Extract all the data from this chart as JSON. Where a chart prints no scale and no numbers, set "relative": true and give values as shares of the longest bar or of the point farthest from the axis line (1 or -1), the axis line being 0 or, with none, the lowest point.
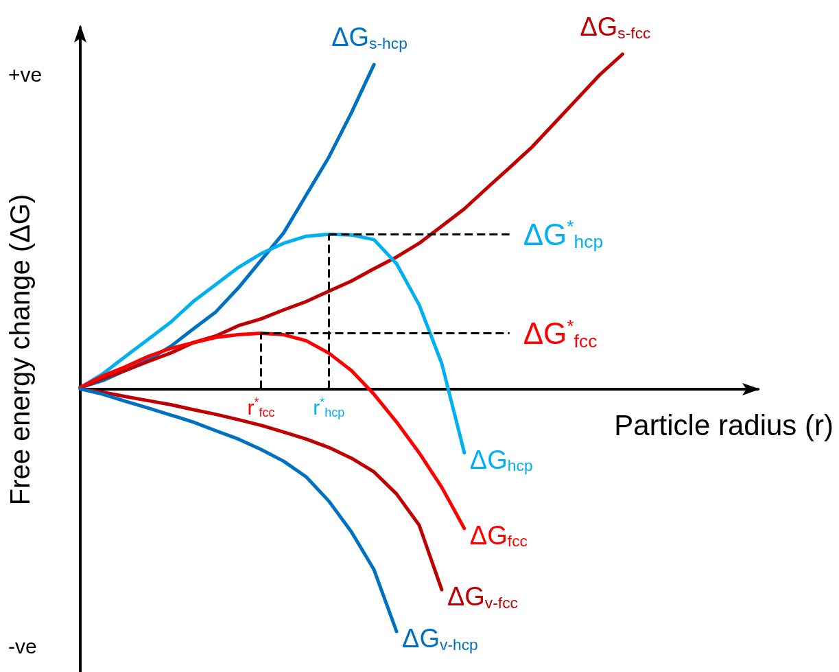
{
  "chart_data": {
    "type": "line",
    "relative": true,
    "ylabel": "Free energy change (ΔG)",
    "xlabel": "Particle radius (r)",
    "marker": "none",
    "line_style": "solid",
    "grid": false,
    "legend": false,
    "categories": [
      null,
      null,
      null,
      null,
      null,
      null,
      null,
      null,
      null,
      null,
      null,
      null,
      null,
      null,
      null,
      null,
      null,
      null,
      null,
      null,
      null,
      null,
      null,
      null,
      null,
      null,
      null,
      null,
      null,
      null,
      null
    ],
    "annotations": [
      "+ve",
      "-ve",
      "r$^{*}$$_{hcp}$",
      "r$^{*}$$_{fcc}$"
    ],
    "series": [
      {
        "name": "ΔG$_{s-hcp}$",
        "color": "#0070c0",
        "values": [
          0.004,
          0.025,
          0.055,
          0.086,
          0.127,
          0.179,
          0.23,
          0.302,
          0.384,
          0.466,
          0.579,
          0.692,
          0.825,
          0.969,
          null,
          null,
          null,
          null,
          null,
          null,
          null,
          null,
          null,
          null,
          null,
          null,
          null,
          null,
          null,
          null,
          null
        ]
      },
      {
        "name": "ΔG$_{s-fcc}$",
        "color": "#c00000",
        "values": [
          0.004,
          0.031,
          0.055,
          0.082,
          0.107,
          0.138,
          0.158,
          0.189,
          0.209,
          0.236,
          0.261,
          0.292,
          0.322,
          0.359,
          0.394,
          0.435,
          0.486,
          0.538,
          0.6,
          0.661,
          0.723,
          0.795,
          0.867,
          0.939,
          1,
          null,
          null,
          null,
          null,
          null,
          null
        ]
      },
      {
        "name": "ΔG$_{hcp}$",
        "color": "#00b0f0",
        "values": [
          0.004,
          0.045,
          0.097,
          0.148,
          0.199,
          0.261,
          0.312,
          0.363,
          0.404,
          0.435,
          0.456,
          0.462,
          0.46,
          0.446,
          0.374,
          0.251,
          0.076,
          -0.191,
          null,
          null,
          null,
          null,
          null,
          null,
          null,
          null,
          null,
          null,
          null,
          null,
          null
        ]
      },
      {
        "name": "ΔG$_{fcc}$",
        "color": "#ff0000",
        "values": [
          0.004,
          0.039,
          0.066,
          0.097,
          0.121,
          0.138,
          0.154,
          0.162,
          0.166,
          0.162,
          0.144,
          0.107,
          0.055,
          -0.016,
          -0.099,
          -0.191,
          -0.294,
          -0.417,
          null,
          null,
          null,
          null,
          null,
          null,
          null,
          null,
          null,
          null,
          null,
          null,
          null
        ]
      },
      {
        "name": "ΔG$_{v-fcc}$",
        "color": "#c00000",
        "values": [
          0,
          -0.01,
          -0.023,
          -0.035,
          -0.047,
          -0.062,
          -0.076,
          -0.092,
          -0.109,
          -0.129,
          -0.15,
          -0.175,
          -0.207,
          -0.248,
          -0.314,
          -0.407,
          -0.6,
          null,
          null,
          null,
          null,
          null,
          null,
          null,
          null,
          null,
          null,
          null,
          null,
          null,
          null
        ]
      },
      {
        "name": "ΔG$_{v-hcp}$",
        "color": "#0070c0",
        "values": [
          0,
          -0.016,
          -0.037,
          -0.057,
          -0.078,
          -0.099,
          -0.125,
          -0.15,
          -0.181,
          -0.216,
          -0.263,
          -0.335,
          -0.427,
          -0.54,
          -0.725,
          null,
          null,
          null,
          null,
          null,
          null,
          null,
          null,
          null,
          null,
          null,
          null,
          null,
          null,
          null,
          null
        ]
      }
    ],
    "ref_lines": [
      {
        "axis": "y",
        "value": 0.462,
        "label": "ΔG$^{*}$$_{hcp}$",
        "color": "#000000",
        "line_style": "dashed"
      },
      {
        "axis": "y",
        "value": 0.166,
        "label": "ΔG$^{*}$$_{fcc}$",
        "color": "#000000",
        "line_style": "dashed"
      }
    ]
  }
}
